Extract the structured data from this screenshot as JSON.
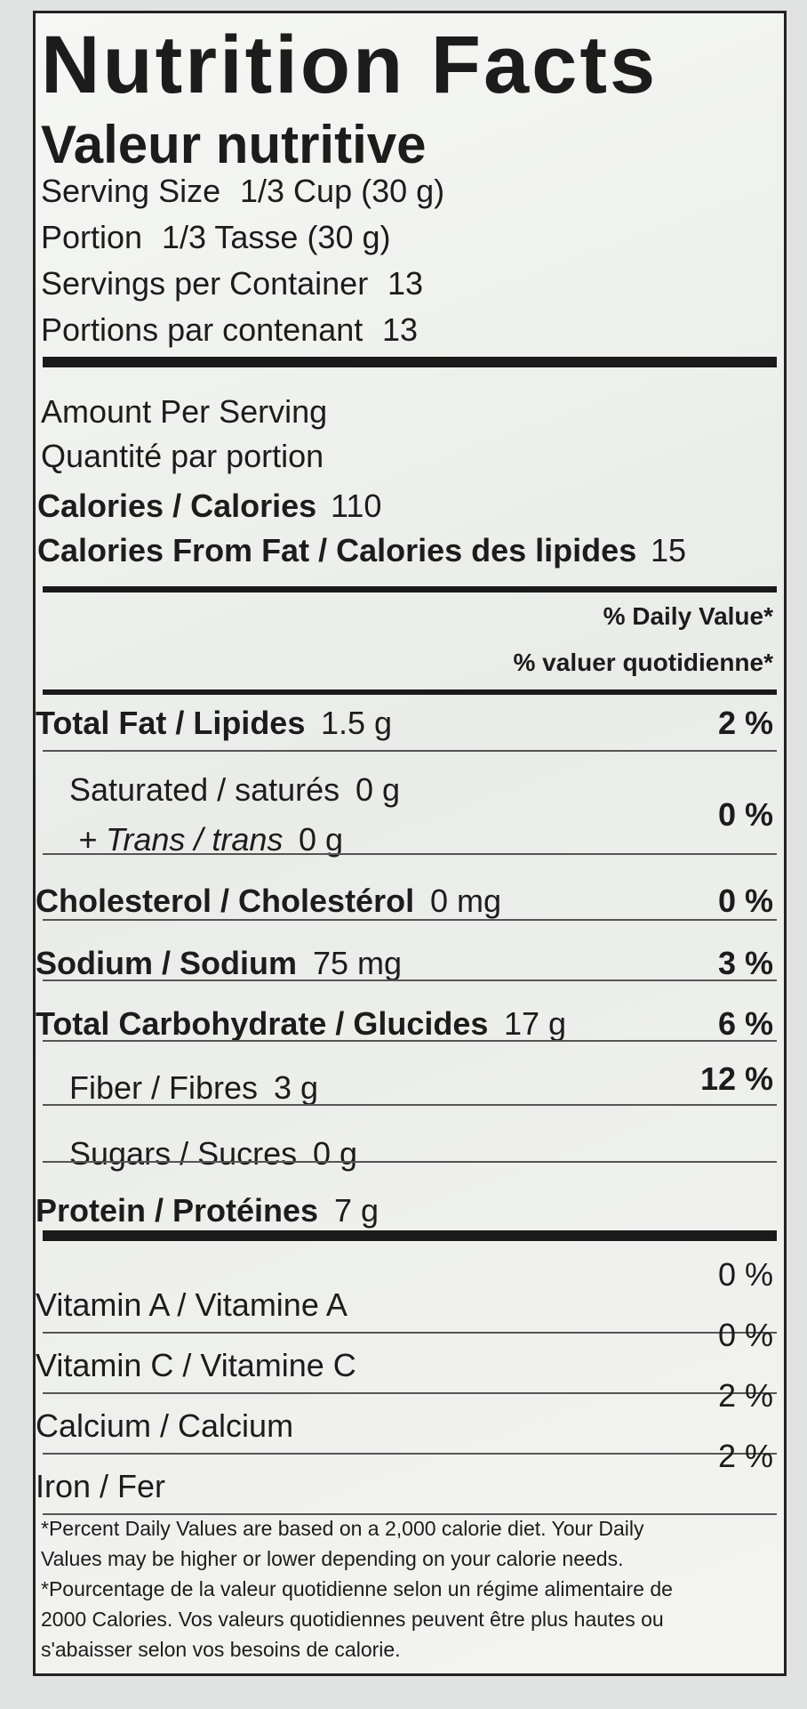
{
  "header": {
    "title": "Nutrition Facts",
    "subtitle": "Valeur nutritive"
  },
  "serving": [
    {
      "label": "Serving Size",
      "value": "1/3 Cup (30 g)"
    },
    {
      "label": "Portion",
      "value": "1/3 Tasse (30 g)"
    },
    {
      "label": "Servings per Container",
      "value": "13"
    },
    {
      "label": "Portions par contenant",
      "value": "13"
    }
  ],
  "amount": [
    "Amount Per Serving",
    "Quantité par portion"
  ],
  "calories": {
    "label": "Calories / Calories",
    "value": "110"
  },
  "fat_calories": {
    "label": "Calories From Fat / Calories des lipides",
    "value": "15"
  },
  "daily_value_header": [
    "% Daily Value*",
    "% valuer quotidienne*"
  ],
  "nutrients": [
    {
      "label": "Total Fat / Lipides",
      "amount": "1.5 g",
      "dv": "2 %"
    },
    {
      "label": "Saturated / saturés",
      "amount": "0 g",
      "sub": {
        "label": "+ Trans / trans",
        "amount": "0 g"
      },
      "dv": "0 %"
    },
    {
      "label": "Cholesterol / Cholestérol",
      "amount": "0 mg",
      "dv": "0 %"
    },
    {
      "label": "Sodium / Sodium",
      "amount": "75 mg",
      "dv": "3 %"
    },
    {
      "label": "Total Carbohydrate / Glucides",
      "amount": "17 g",
      "dv": "6 %"
    },
    {
      "label": "Fiber / Fibres",
      "amount": "3 g",
      "dv": "12 %"
    },
    {
      "label": "Sugars / Sucres",
      "amount": "0 g"
    },
    {
      "label": "Protein / Protéines",
      "amount": "7 g"
    }
  ],
  "vitamins": [
    {
      "label": "Vitamin A / Vitamine A",
      "dv": "0 %"
    },
    {
      "label": "Vitamin C / Vitamine C",
      "dv": "0 %"
    },
    {
      "label": "Calcium / Calcium",
      "dv": "2 %"
    },
    {
      "label": "Iron / Fer",
      "dv": "2 %"
    }
  ],
  "footnote": [
    "*Percent Daily Values are based on a 2,000 calorie diet. Your Daily",
    "Values may be higher or lower depending on your calorie needs.",
    "*Pourcentage de la valeur quotidienne selon un régime alimentaire de",
    "2000 Calories. Vos valeurs quotidiennes peuvent être plus hautes ou",
    "s'abaisser selon vos besoins de calorie."
  ]
}
